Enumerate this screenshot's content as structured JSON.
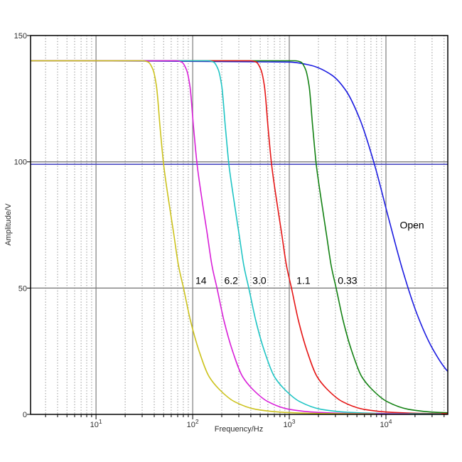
{
  "chart_data": {
    "type": "line",
    "title": "",
    "xlabel": "Frequency/Hz",
    "ylabel": "Amplitude/V",
    "x_scale": "log",
    "xlim": [
      2.1,
      43650
    ],
    "ylim": [
      0,
      150
    ],
    "plateau_v": 140,
    "y_ticks": [
      {
        "v": 0,
        "label": "0"
      },
      {
        "v": 50,
        "label": "50"
      },
      {
        "v": 100,
        "label": "100"
      },
      {
        "v": 150,
        "label": "150"
      }
    ],
    "x_ticks": [
      {
        "f": 10,
        "base": "10",
        "exp": "1"
      },
      {
        "f": 100,
        "base": "10",
        "exp": "2"
      },
      {
        "f": 1000,
        "base": "10",
        "exp": "3"
      },
      {
        "f": 10000,
        "base": "10",
        "exp": "4"
      }
    ],
    "grid": {
      "h_solid_v": [
        50,
        100
      ],
      "v_solid_f": [
        10,
        100,
        1000,
        10000
      ],
      "v_minor_f": [
        3,
        4,
        5,
        6,
        7,
        8,
        9,
        20,
        30,
        40,
        50,
        60,
        70,
        80,
        90,
        200,
        300,
        400,
        500,
        600,
        700,
        800,
        900,
        2000,
        3000,
        4000,
        5000,
        6000,
        7000,
        8000,
        9000,
        20000,
        30000,
        40000
      ],
      "solid_color": "#7d7d7d",
      "minor_color": "#8a8a8a"
    },
    "ref_line": {
      "v": 99,
      "color": "#4d4dc4"
    },
    "series": [
      {
        "label": "14",
        "color": "#ccc21c",
        "fc_hz": 50,
        "profile": "sharp"
      },
      {
        "label": "6.2",
        "color": "#d81fd8",
        "fc_hz": 111,
        "profile": "sharp"
      },
      {
        "label": "3.0",
        "color": "#1ec4c4",
        "fc_hz": 237,
        "profile": "sharp"
      },
      {
        "label": "1.1",
        "color": "#e51414",
        "fc_hz": 655,
        "profile": "sharp"
      },
      {
        "label": "0.33",
        "color": "#128112",
        "fc_hz": 1900,
        "profile": "sharp"
      },
      {
        "label": "Open",
        "color": "#1a1ae0",
        "fc_hz": 7600,
        "profile": "gentle"
      }
    ],
    "annotations": [
      {
        "text": "14",
        "f_hz": 122,
        "v": 53
      },
      {
        "text": "6.2",
        "f_hz": 250,
        "v": 53
      },
      {
        "text": "3.0",
        "f_hz": 490,
        "v": 53
      },
      {
        "text": "1.1",
        "f_hz": 1400,
        "v": 53
      },
      {
        "text": "0.33",
        "f_hz": 4000,
        "v": 53
      },
      {
        "text": "Open",
        "f_hz": 18600,
        "v": 75
      }
    ],
    "profiles": {
      "sharp": [
        [
          -3,
          140
        ],
        [
          -0.22,
          140
        ],
        [
          -0.16,
          139.5
        ],
        [
          -0.11,
          136.5
        ],
        [
          -0.074,
          130
        ],
        [
          -0.037,
          114
        ],
        [
          0,
          99
        ],
        [
          0.051,
          85
        ],
        [
          0.103,
          72
        ],
        [
          0.154,
          59
        ],
        [
          0.206,
          50
        ],
        [
          0.279,
          37
        ],
        [
          0.368,
          25
        ],
        [
          0.47,
          15
        ],
        [
          0.574,
          10
        ],
        [
          0.735,
          5
        ],
        [
          0.956,
          2
        ],
        [
          1.25,
          0.8
        ],
        [
          1.62,
          0.35
        ],
        [
          2.2,
          0.15
        ],
        [
          4,
          0.1
        ]
      ],
      "gentle": [
        [
          -3,
          140
        ],
        [
          -0.88,
          139.5
        ],
        [
          -0.66,
          138.2
        ],
        [
          -0.44,
          134.3
        ],
        [
          -0.29,
          127.9
        ],
        [
          -0.147,
          116.5
        ],
        [
          0,
          99
        ],
        [
          0.147,
          77.6
        ],
        [
          0.294,
          56.8
        ],
        [
          0.441,
          39.7
        ],
        [
          0.588,
          27
        ],
        [
          0.757,
          17.1
        ],
        [
          0.95,
          11
        ],
        [
          1.2,
          6
        ],
        [
          1.6,
          2.8
        ]
      ]
    },
    "draw_order_back_to_front": [
      "Open",
      "0.33",
      "1.1",
      "3.0",
      "6.2",
      "14"
    ]
  }
}
